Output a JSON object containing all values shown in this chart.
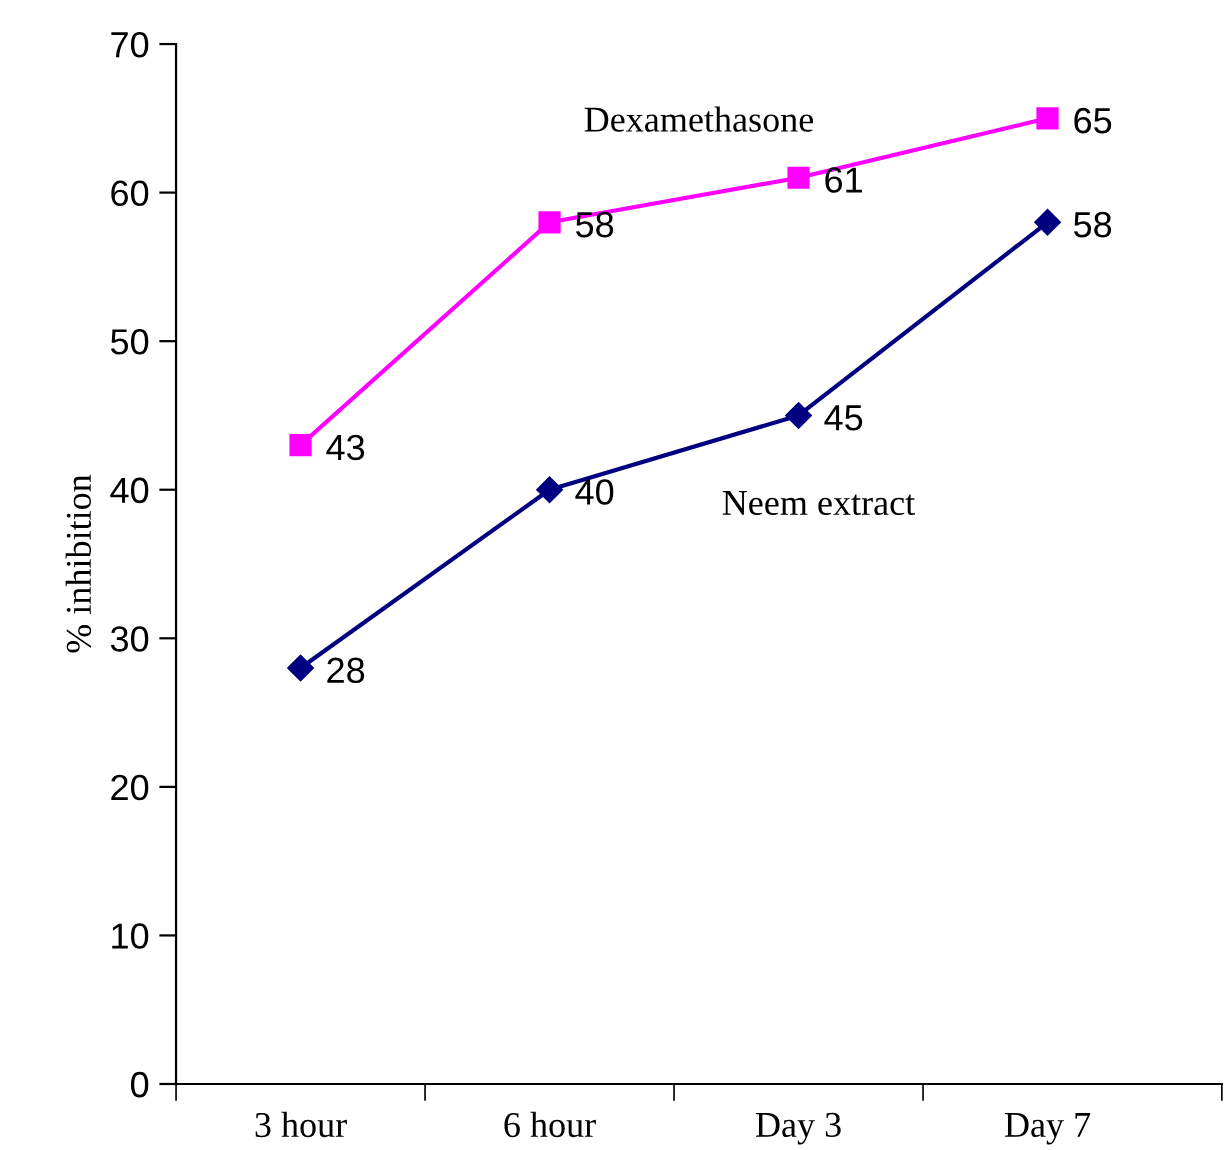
{
  "chart_data": {
    "type": "line",
    "ylabel": "% inhibition",
    "categories": [
      "3 hour",
      "6 hour",
      "Day 3",
      "Day 7"
    ],
    "series": [
      {
        "name": "Dexamethasone",
        "color": "#ff00ff",
        "values": [
          43,
          58,
          61,
          65
        ],
        "marker": "square"
      },
      {
        "name": "Neem extract",
        "color": "#000080",
        "values": [
          28,
          40,
          45,
          58
        ],
        "marker": "diamond"
      }
    ],
    "ylim": [
      0,
      70
    ],
    "yticks": [
      0,
      10,
      20,
      30,
      40,
      50,
      60,
      70
    ],
    "data_labels": true,
    "legend": false,
    "grid": false
  }
}
